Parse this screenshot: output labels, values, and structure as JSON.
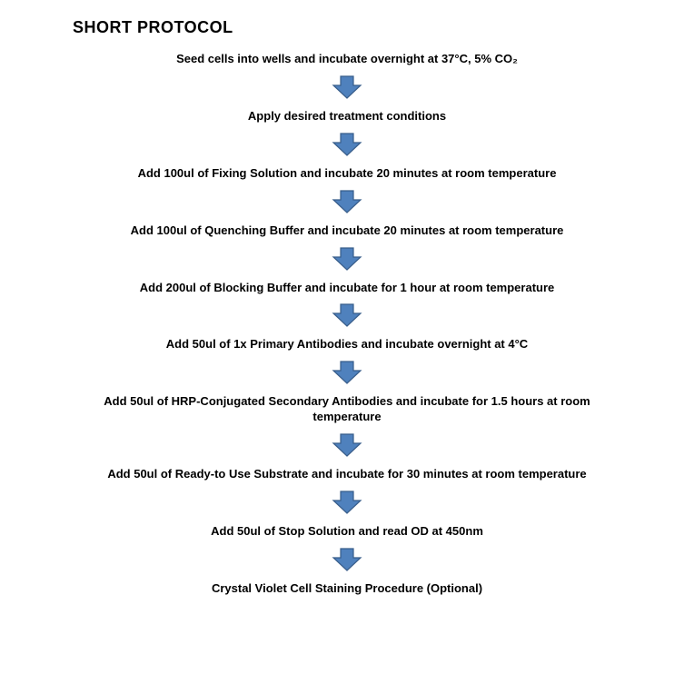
{
  "title": "SHORT PROTOCOL",
  "flowchart": {
    "type": "flowchart",
    "background_color": "#ffffff",
    "text_color": "#000000",
    "title_fontsize": 18,
    "step_fontsize": 13,
    "step_fontweight": "bold",
    "arrow": {
      "fill": "#4f81bd",
      "stroke": "#385d8a",
      "stroke_width": 1.2,
      "width": 36,
      "height": 28
    },
    "steps": [
      {
        "label": "Seed cells into wells and incubate overnight at 37°C, 5% CO₂"
      },
      {
        "label": "Apply desired treatment conditions"
      },
      {
        "label": "Add 100ul of Fixing Solution and incubate 20 minutes at room temperature"
      },
      {
        "label": "Add 100ul of Quenching Buffer and incubate 20 minutes at room temperature"
      },
      {
        "label": "Add 200ul of Blocking Buffer and incubate for 1 hour at room temperature"
      },
      {
        "label": "Add 50ul of 1x Primary Antibodies and incubate overnight at 4°C"
      },
      {
        "label": "Add 50ul of HRP-Conjugated Secondary Antibodies and incubate for 1.5 hours at room temperature"
      },
      {
        "label": "Add 50ul of Ready-to Use Substrate and incubate for 30 minutes at room temperature"
      },
      {
        "label": "Add 50ul of Stop Solution and read OD at 450nm"
      },
      {
        "label": "Crystal Violet Cell Staining Procedure (Optional)"
      }
    ]
  }
}
